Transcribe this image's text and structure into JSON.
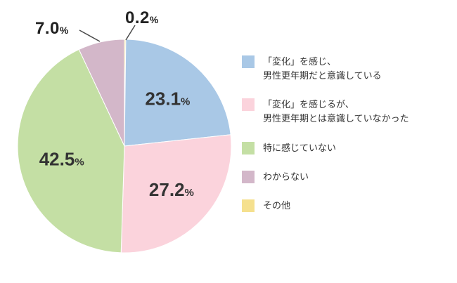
{
  "chart_data": {
    "type": "pie",
    "title": "",
    "unit": "%",
    "start_angle": 0,
    "direction": "clockwise",
    "legend_position": "right",
    "slices": [
      {
        "label": "その他",
        "value": 0.2,
        "pct": "0.2",
        "color": "#f5e08e",
        "label_outside": true
      },
      {
        "label": "「変化」を感じ、男性更年期だと意識している",
        "value": 23.1,
        "pct": "23.1",
        "color": "#a9c8e6",
        "label_outside": false
      },
      {
        "label": "「変化」を感じるが、男性更年期とは意識していなかった",
        "value": 27.2,
        "pct": "27.2",
        "color": "#fbd3dc",
        "label_outside": false
      },
      {
        "label": "特に感じていない",
        "value": 42.5,
        "pct": "42.5",
        "color": "#c4dfa4",
        "label_outside": false
      },
      {
        "label": "わからない",
        "value": 7.0,
        "pct": "7.0",
        "color": "#d3b7c9",
        "label_outside": true
      }
    ]
  },
  "legend": {
    "items": [
      {
        "color": "#a9c8e6",
        "lines": [
          "「変化」を感じ、",
          "男性更年期だと意識している"
        ]
      },
      {
        "color": "#fbd3dc",
        "lines": [
          "「変化」を感じるが、",
          "男性更年期とは意識していなかった"
        ]
      },
      {
        "color": "#c4dfa4",
        "lines": [
          "特に感じていない"
        ]
      },
      {
        "color": "#d3b7c9",
        "lines": [
          "わからない"
        ]
      },
      {
        "color": "#f5e08e",
        "lines": [
          "その他"
        ]
      }
    ]
  }
}
